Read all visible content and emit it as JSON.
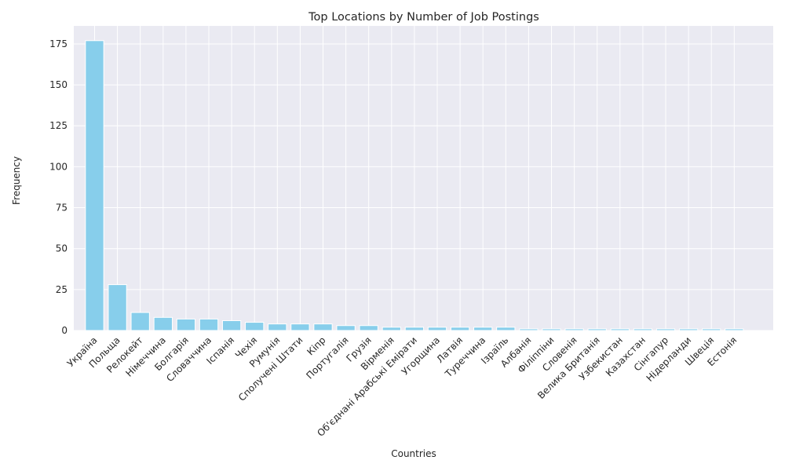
{
  "chart_data": {
    "type": "bar",
    "title": "Top Locations by Number of Job Postings",
    "xlabel": "Countries",
    "ylabel": "Frequency",
    "categories": [
      "Україна",
      "Польща",
      "Релокейт",
      "Німеччина",
      "Болгарія",
      "Словаччина",
      "Іспанія",
      "Чехія",
      "Румунія",
      "Сполучені Штати",
      "Кіпр",
      "Португалія",
      "Грузія",
      "Вірменія",
      "Об'єднані Арабські Емірати",
      "Угорщина",
      "Латвія",
      "Туреччина",
      "Ізраїль",
      "Албанія",
      "Філіппіни",
      "Словенія",
      "Велика Британія",
      "Узбекистан",
      "Казахстан",
      "Сінгапур",
      "Нідерланди",
      "Швеція",
      "Естонія"
    ],
    "values": [
      177,
      28,
      11,
      8,
      7,
      7,
      6,
      5,
      4,
      4,
      4,
      3,
      3,
      2,
      2,
      2,
      2,
      2,
      2,
      1,
      1,
      1,
      1,
      1,
      1,
      1,
      1,
      1,
      1
    ],
    "ylim": [
      0,
      186
    ],
    "yticks": [
      0,
      25,
      50,
      75,
      100,
      125,
      150,
      175
    ],
    "grid": true,
    "bar_color": "#87CEEB",
    "plot_background": "#EAEAF2"
  }
}
